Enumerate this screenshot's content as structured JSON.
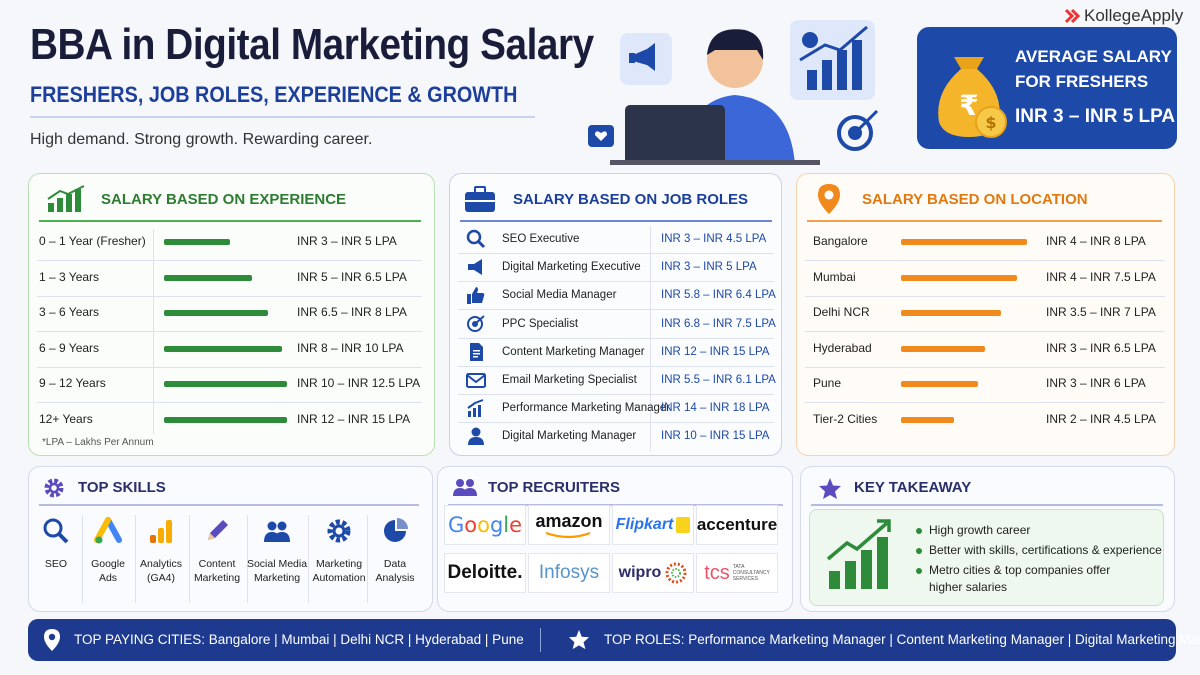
{
  "header": {
    "title": "BBA in Digital Marketing Salary",
    "subtitle": "FRESHERS, JOB ROLES, EXPERIENCE & GROWTH",
    "tagline": "High demand. Strong growth. Rewarding career.",
    "brand": "KollegeApply"
  },
  "average": {
    "line1": "AVERAGE SALARY",
    "line2": "FOR FRESHERS",
    "value": "INR 3 – INR 5 LPA",
    "currency_symbol": "₹"
  },
  "experience": {
    "title": "SALARY BASED ON EXPERIENCE",
    "rows": [
      {
        "label": "0 – 1 Year (Fresher)",
        "value": "INR 3 – INR 5 LPA",
        "level": 0.53
      },
      {
        "label": "1 – 3 Years",
        "value": "INR 5 – INR 6.5 LPA",
        "level": 0.7
      },
      {
        "label": "3 – 6 Years",
        "value": "INR 6.5 – INR 8 LPA",
        "level": 0.83
      },
      {
        "label": "6 – 9 Years",
        "value": "INR 8 – INR 10 LPA",
        "level": 0.94
      },
      {
        "label": "9 – 12 Years",
        "value": "INR 10 – INR 12.5 LPA",
        "level": 0.98
      },
      {
        "label": "12+ Years",
        "value": "INR 12 – INR 15 LPA",
        "level": 0.98
      }
    ],
    "footnote": "*LPA – Lakhs Per Annum"
  },
  "roles": {
    "title": "SALARY BASED ON JOB ROLES",
    "rows": [
      {
        "label": "SEO Executive",
        "value": "INR 3 – INR 4.5 LPA",
        "icon": "search-icon"
      },
      {
        "label": "Digital Marketing Executive",
        "value": "INR 3 – INR 5 LPA",
        "icon": "megaphone-icon"
      },
      {
        "label": "Social Media Manager",
        "value": "INR 5.8 – INR 6.4 LPA",
        "icon": "thumbs-up-icon"
      },
      {
        "label": "PPC Specialist",
        "value": "INR 6.8 – INR 7.5 LPA",
        "icon": "target-icon"
      },
      {
        "label": "Content Marketing Manager",
        "value": "INR 12 – INR 15 LPA",
        "icon": "document-icon"
      },
      {
        "label": "Email Marketing Specialist",
        "value": "INR 5.5 – INR 6.1 LPA",
        "icon": "envelope-icon"
      },
      {
        "label": "Performance Marketing Manager",
        "value": "INR 14 – INR 18 LPA",
        "icon": "bar-chart-icon"
      },
      {
        "label": "Digital Marketing Manager",
        "value": "INR 10 – INR 15 LPA",
        "icon": "person-icon"
      }
    ]
  },
  "location": {
    "title": "SALARY BASED ON LOCATION",
    "rows": [
      {
        "label": "Bangalore",
        "value": "INR 4 – INR 8 LPA",
        "level": 1.0
      },
      {
        "label": "Mumbai",
        "value": "INR 4 – INR 7.5 LPA",
        "level": 0.92
      },
      {
        "label": "Delhi NCR",
        "value": "INR 3.5 – INR 7 LPA",
        "level": 0.79
      },
      {
        "label": "Hyderabad",
        "value": "INR 3 – INR 6.5 LPA",
        "level": 0.67
      },
      {
        "label": "Pune",
        "value": "INR 3 – INR 6 LPA",
        "level": 0.61
      },
      {
        "label": "Tier-2 Cities",
        "value": "INR 2 – INR 4.5 LPA",
        "level": 0.42
      }
    ]
  },
  "skills": {
    "title": "TOP SKILLS",
    "items": [
      {
        "line1": "SEO",
        "line2": "",
        "icon": "search-icon"
      },
      {
        "line1": "Google",
        "line2": "Ads",
        "icon": "google-ads-icon"
      },
      {
        "line1": "Analytics",
        "line2": "(GA4)",
        "icon": "analytics-icon"
      },
      {
        "line1": "Content",
        "line2": "Marketing",
        "icon": "pencil-icon"
      },
      {
        "line1": "Social Media",
        "line2": "Marketing",
        "icon": "people-icon"
      },
      {
        "line1": "Marketing",
        "line2": "Automation",
        "icon": "gear-icon"
      },
      {
        "line1": "Data",
        "line2": "Analysis",
        "icon": "pie-chart-icon"
      }
    ]
  },
  "recruiters": {
    "title": "TOP RECRUITERS",
    "logos": [
      "Google",
      "amazon",
      "Flipkart",
      "accenture",
      "Deloitte.",
      "Infosys",
      "wipro",
      "tcs"
    ],
    "tcs_sub1": "TATA",
    "tcs_sub2": "CONSULTANCY",
    "tcs_sub3": "SERVICES"
  },
  "takeaway": {
    "title": "KEY TAKEAWAY",
    "bullets": [
      "High growth career",
      "Better with skills, certifications & experience",
      "Metro cities & top companies offer"
    ],
    "bullet3_cont": "higher salaries"
  },
  "footer": {
    "cities": "TOP PAYING CITIES: Bangalore | Mumbai | Delhi NCR | Hyderabad | Pune",
    "roles": "TOP ROLES: Performance Marketing Manager | Content Marketing Manager | Digital Marketing Manager"
  },
  "colors": {
    "navy": "#1d3a8e",
    "blue": "#1d49a8",
    "green": "#2e8b3a",
    "orange": "#f08a1c",
    "purple": "#5a4bbf"
  }
}
